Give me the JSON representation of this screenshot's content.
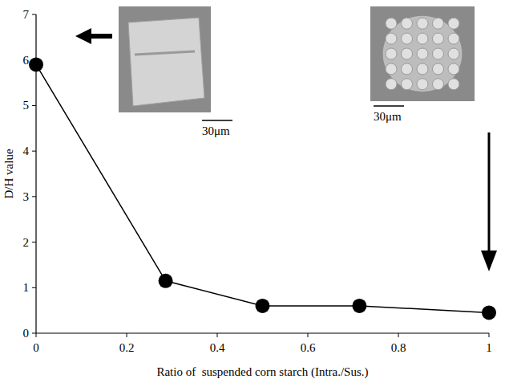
{
  "chart_data": {
    "type": "line",
    "x_label": "Ratio of  suspended corn starch (Intra./Sus.)",
    "y_label": "D/H value",
    "x": [
      0,
      0.286,
      0.5,
      0.714,
      1
    ],
    "values": [
      5.9,
      1.15,
      0.6,
      0.6,
      0.45
    ],
    "color": "#000000",
    "marker": "circle",
    "line_style": "solid",
    "xlim": [
      0,
      1
    ],
    "xticks": [
      0,
      0.2,
      0.4,
      0.6,
      0.8,
      1
    ],
    "ylim": [
      0,
      7
    ],
    "yticks": [
      0,
      1,
      2,
      3,
      4,
      5,
      6,
      7
    ],
    "annotations": [
      {
        "text": "30μm"
      },
      {
        "text": "30μm"
      }
    ]
  }
}
